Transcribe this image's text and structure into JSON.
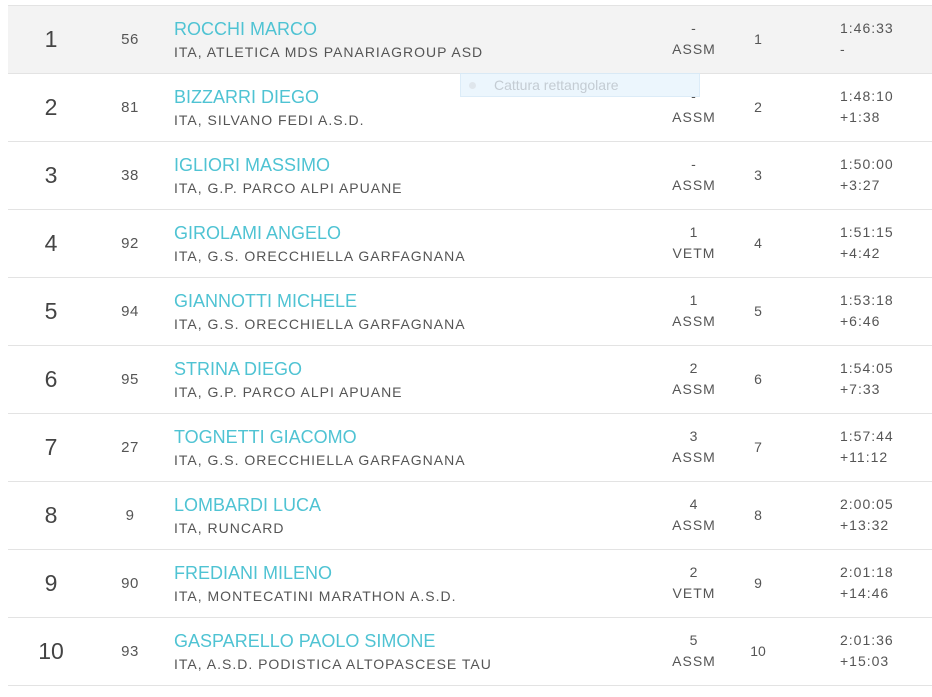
{
  "rows": [
    {
      "pos": "1",
      "bib": "56",
      "name": "ROCCHI MARCO",
      "club": "ITA, ATLETICA MDS PANARIAGROUP ASD",
      "cat_pos": "-",
      "cat": "ASSM",
      "sex_pos": "1",
      "time": "1:46:33",
      "gap": "-"
    },
    {
      "pos": "2",
      "bib": "81",
      "name": "BIZZARRI DIEGO",
      "club": "ITA, SILVANO FEDI A.S.D.",
      "cat_pos": "-",
      "cat": "ASSM",
      "sex_pos": "2",
      "time": "1:48:10",
      "gap": "+1:38"
    },
    {
      "pos": "3",
      "bib": "38",
      "name": "IGLIORI MASSIMO",
      "club": "ITA, G.P. PARCO ALPI APUANE",
      "cat_pos": "-",
      "cat": "ASSM",
      "sex_pos": "3",
      "time": "1:50:00",
      "gap": "+3:27"
    },
    {
      "pos": "4",
      "bib": "92",
      "name": "GIROLAMI ANGELO",
      "club": "ITA, G.S. ORECCHIELLA GARFAGNANA",
      "cat_pos": "1",
      "cat": "VETM",
      "sex_pos": "4",
      "time": "1:51:15",
      "gap": "+4:42"
    },
    {
      "pos": "5",
      "bib": "94",
      "name": "GIANNOTTI MICHELE",
      "club": "ITA, G.S. ORECCHIELLA GARFAGNANA",
      "cat_pos": "1",
      "cat": "ASSM",
      "sex_pos": "5",
      "time": "1:53:18",
      "gap": "+6:46"
    },
    {
      "pos": "6",
      "bib": "95",
      "name": "STRINA DIEGO",
      "club": "ITA, G.P. PARCO ALPI APUANE",
      "cat_pos": "2",
      "cat": "ASSM",
      "sex_pos": "6",
      "time": "1:54:05",
      "gap": "+7:33"
    },
    {
      "pos": "7",
      "bib": "27",
      "name": "TOGNETTI GIACOMO",
      "club": "ITA, G.S. ORECCHIELLA GARFAGNANA",
      "cat_pos": "3",
      "cat": "ASSM",
      "sex_pos": "7",
      "time": "1:57:44",
      "gap": "+11:12"
    },
    {
      "pos": "8",
      "bib": "9",
      "name": "LOMBARDI LUCA",
      "club": "ITA, RUNCARD",
      "cat_pos": "4",
      "cat": "ASSM",
      "sex_pos": "8",
      "time": "2:00:05",
      "gap": "+13:32"
    },
    {
      "pos": "9",
      "bib": "90",
      "name": "FREDIANI MILENO",
      "club": "ITA, MONTECATINI MARATHON A.S.D.",
      "cat_pos": "2",
      "cat": "VETM",
      "sex_pos": "9",
      "time": "2:01:18",
      "gap": "+14:46"
    },
    {
      "pos": "10",
      "bib": "93",
      "name": "GASPARELLO PAOLO SIMONE",
      "club": "ITA, A.S.D. PODISTICA ALTOPASCESE TAU",
      "cat_pos": "5",
      "cat": "ASSM",
      "sex_pos": "10",
      "time": "2:01:36",
      "gap": "+15:03"
    }
  ],
  "overlay": {
    "label": "Cattura rettangolare"
  },
  "colors": {
    "name_link": "#4fc3d3",
    "text": "#555555",
    "row_highlight": "#f3f3f3",
    "divider": "#e3e3e3"
  },
  "icons": {
    "overlay_icon": "capture-dot-icon"
  }
}
